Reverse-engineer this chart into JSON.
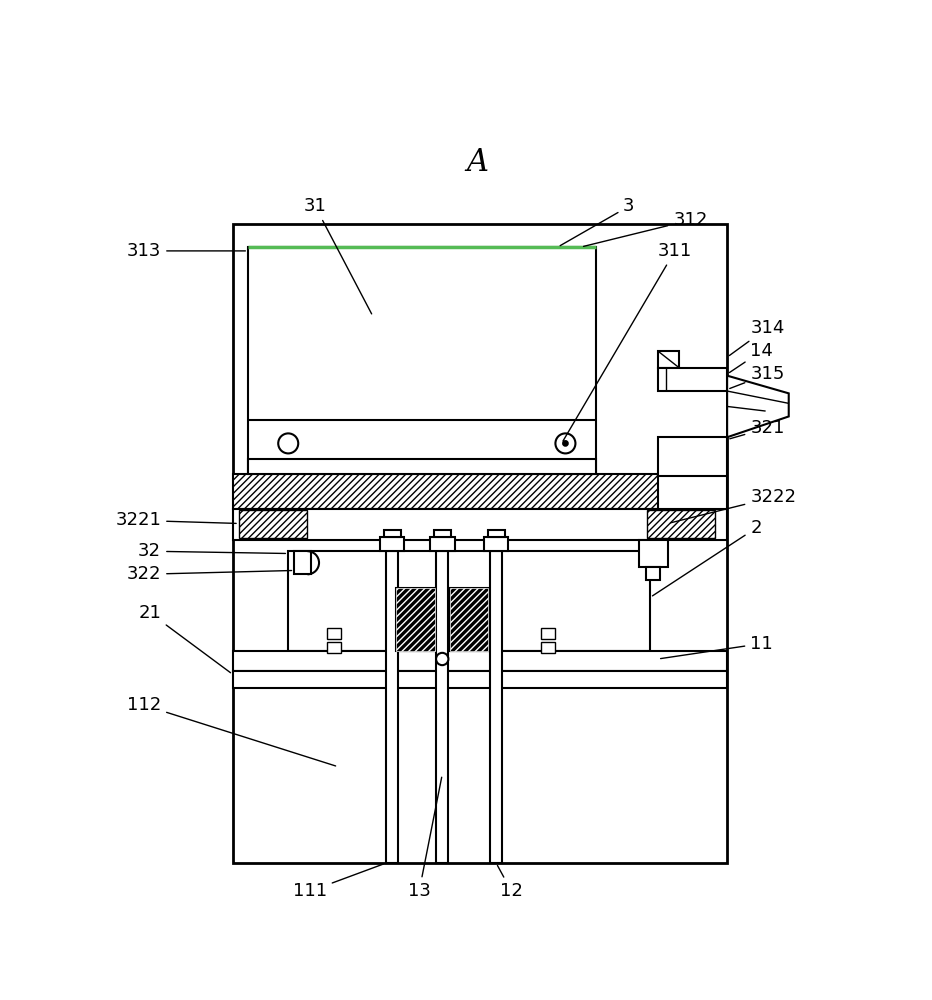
{
  "bg_color": "#ffffff",
  "line_color": "#000000",
  "green_color": "#55bb55",
  "title": "A",
  "title_fontsize": 22,
  "label_fontsize": 13,
  "lw": 1.5,
  "lw_thin": 1.0
}
